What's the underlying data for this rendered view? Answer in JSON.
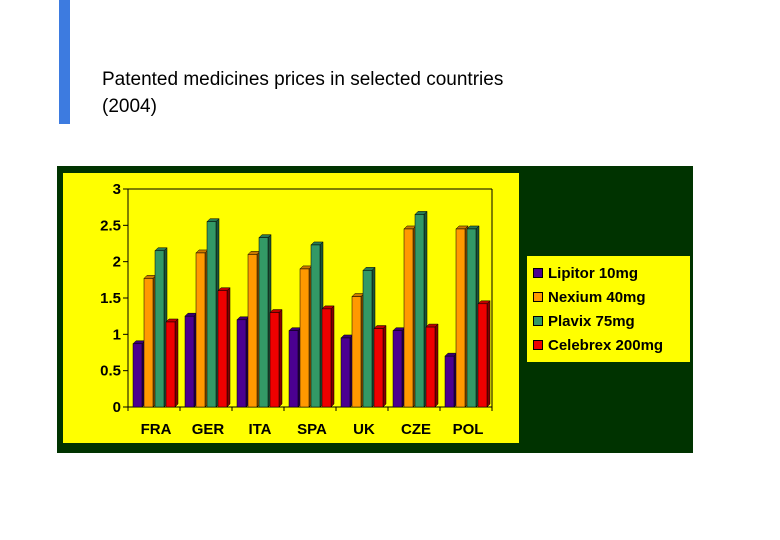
{
  "slide": {
    "title_line1": "Patented medicines prices in selected countries",
    "title_line2": "(2004)",
    "accent_color": "#3d7be0"
  },
  "chart_data": {
    "type": "bar",
    "categories": [
      "FRA",
      "GER",
      "ITA",
      "SPA",
      "UK",
      "CZE",
      "POL"
    ],
    "series": [
      {
        "name": "Lipitor 10mg",
        "color": "#4b0090",
        "values": [
          0.87,
          1.25,
          1.2,
          1.05,
          0.95,
          1.05,
          0.7
        ]
      },
      {
        "name": "Nexium 40mg",
        "color": "#ff9900",
        "values": [
          1.77,
          2.12,
          2.1,
          1.9,
          1.52,
          2.45,
          2.45
        ]
      },
      {
        "name": "Plavix 75mg",
        "color": "#339966",
        "values": [
          2.15,
          2.55,
          2.33,
          2.23,
          1.88,
          2.65,
          2.45
        ]
      },
      {
        "name": "Celebrex 200mg",
        "color": "#ee0000",
        "values": [
          1.17,
          1.6,
          1.3,
          1.35,
          1.08,
          1.1,
          1.42
        ]
      }
    ],
    "ylim": [
      0,
      3
    ],
    "yticks": [
      "3",
      "2.5",
      "2",
      "1.5",
      "1",
      "0.5",
      "0"
    ],
    "xlabel": "",
    "ylabel": "",
    "grid": false,
    "legend_position": "right",
    "background_color": "#ffff00",
    "frame_color": "#003300"
  }
}
